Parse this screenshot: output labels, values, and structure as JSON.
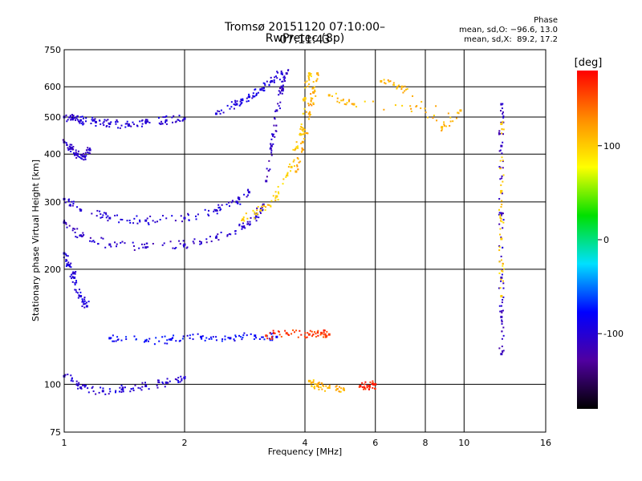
{
  "header": {
    "title": "Tromsø 20151120 07:10:00–07:11:43",
    "subtitle": "RwPretec (8p)",
    "phase_title": "Phase",
    "phase_o": "mean, sd,O: −96.6, 13.0",
    "phase_x": "mean, sd,X:  89.2, 17.2"
  },
  "chart_data": {
    "type": "scatter",
    "xlabel": "Frequency [MHz]",
    "ylabel": "Stationary phase Virtual Height [km]",
    "xscale": "log",
    "yscale": "log",
    "xlim": [
      1,
      16
    ],
    "ylim": [
      75,
      750
    ],
    "x_ticks": [
      1,
      2,
      4,
      6,
      8,
      10,
      16
    ],
    "y_ticks": [
      75,
      100,
      200,
      300,
      400,
      500,
      600,
      750
    ],
    "x_gridlines": [
      1,
      2,
      4,
      6,
      8,
      10,
      16
    ],
    "y_gridlines": [
      75,
      100,
      200,
      300,
      400,
      500,
      600,
      750
    ],
    "colorbar": {
      "label": "[deg]",
      "range": [
        -180,
        180
      ],
      "ticks": [
        100,
        0,
        -100
      ],
      "colors": [
        "#ff0000",
        "#ff8c00",
        "#ffff00",
        "#00e000",
        "#00e0ff",
        "#0000ff",
        "#5000a0",
        "#000000"
      ]
    },
    "series": [
      {
        "name": "",
        "color_deg": -100,
        "x": [
          1.0,
          1.05,
          1.1,
          1.2,
          1.3,
          1.45,
          1.6,
          1.8,
          2.0
        ],
        "y": [
          500,
          495,
          490,
          485,
          480,
          478,
          485,
          490,
          495
        ]
      },
      {
        "name": "",
        "color_deg": -105,
        "x": [
          1.0,
          1.04,
          1.08,
          1.12,
          1.16
        ],
        "y": [
          430,
          415,
          400,
          395,
          410
        ]
      },
      {
        "name": "",
        "color_deg": -105,
        "x": [
          1.0,
          1.1,
          1.3,
          1.6,
          2.0,
          2.4,
          2.8,
          3.0,
          3.15
        ],
        "y": [
          265,
          245,
          232,
          228,
          232,
          242,
          258,
          272,
          295
        ]
      },
      {
        "name": "",
        "color_deg": -100,
        "x": [
          1.0,
          1.1,
          1.3,
          1.6,
          2.0,
          2.4,
          2.7,
          2.9
        ],
        "y": [
          305,
          285,
          272,
          268,
          272,
          285,
          300,
          318
        ]
      },
      {
        "name": "",
        "color_deg": -110,
        "x": [
          3.2,
          3.3,
          3.4,
          3.5,
          3.6
        ],
        "y": [
          340,
          420,
          520,
          600,
          650
        ]
      },
      {
        "name": "",
        "color_deg": -95,
        "x": [
          2.4,
          2.7,
          2.9,
          3.1,
          3.3,
          3.5
        ],
        "y": [
          510,
          540,
          565,
          590,
          620,
          650
        ]
      },
      {
        "name": "",
        "color_deg": 100,
        "x": [
          2.8,
          3.1,
          3.4,
          3.7,
          3.9,
          4.0,
          4.1
        ],
        "y": [
          270,
          285,
          310,
          370,
          450,
          560,
          650
        ]
      },
      {
        "name": "",
        "color_deg": 115,
        "x": [
          3.8,
          3.95,
          4.1,
          4.2,
          4.3
        ],
        "y": [
          360,
          430,
          510,
          580,
          650
        ]
      },
      {
        "name": "",
        "color_deg": -95,
        "x": [
          1.0,
          1.03,
          1.06,
          1.1,
          1.14
        ],
        "y": [
          220,
          205,
          190,
          170,
          160
        ]
      },
      {
        "name": "",
        "color_deg": -80,
        "x": [
          1.3,
          1.6,
          1.85,
          2.2,
          2.6,
          3.0,
          3.4
        ],
        "y": [
          132,
          130,
          131,
          133,
          132,
          134,
          133
        ]
      },
      {
        "name": "",
        "color_deg": -100,
        "x": [
          1.0,
          1.1,
          1.25,
          1.4,
          1.6,
          1.8,
          2.0
        ],
        "y": [
          105,
          98,
          96,
          97,
          99,
          101,
          104
        ]
      },
      {
        "name": "",
        "color_deg": 160,
        "x": [
          3.2,
          3.6,
          4.1,
          4.4,
          4.6
        ],
        "y": [
          134,
          136,
          135,
          136,
          135
        ]
      },
      {
        "name": "",
        "color_deg": 170,
        "x": [
          5.5,
          5.8,
          6.0
        ],
        "y": [
          99,
          99,
          100
        ]
      },
      {
        "name": "",
        "color_deg": 110,
        "x": [
          4.1,
          4.3,
          4.6,
          5.0
        ],
        "y": [
          102,
          99,
          98,
          97
        ]
      },
      {
        "name": "",
        "color_deg": -110,
        "x": [
          12.4,
          12.4,
          12.4,
          12.4,
          12.4,
          12.4
        ],
        "y": [
          540,
          420,
          280,
          190,
          150,
          120
        ]
      },
      {
        "name": "",
        "color_deg": 100,
        "x": [
          12.4,
          12.4,
          12.4,
          12.4
        ],
        "y": [
          480,
          320,
          240,
          170
        ]
      },
      {
        "name": "",
        "color_deg": 110,
        "x": [
          6.2,
          7.0,
          8.8,
          9.8,
          5.3,
          4.6
        ],
        "y": [
          620,
          600,
          470,
          520,
          540,
          570
        ]
      }
    ]
  }
}
